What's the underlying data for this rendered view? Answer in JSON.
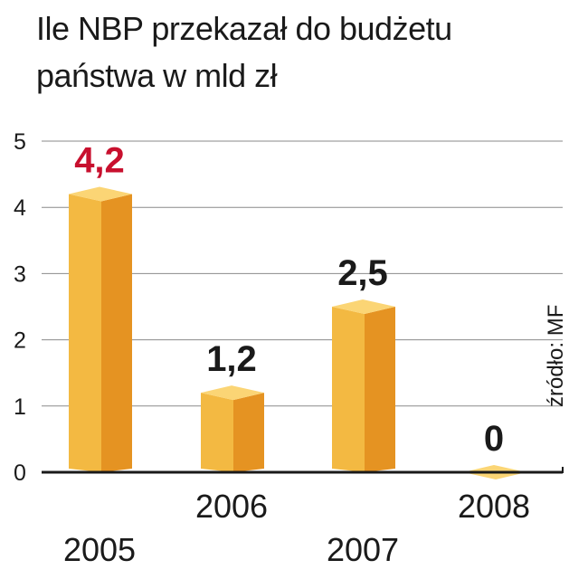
{
  "chart_data": {
    "type": "bar",
    "title": "Ile NBP przekazał do budżetu państwa w mld zł",
    "categories": [
      "2005",
      "2006",
      "2007",
      "2008"
    ],
    "values": [
      4.2,
      1.2,
      2.5,
      0
    ],
    "value_labels": [
      "4,2",
      "1,2",
      "2,5",
      "0"
    ],
    "highlight_index": 0,
    "ylim": [
      0,
      5
    ],
    "yticks": [
      0,
      1,
      2,
      3,
      4,
      5
    ],
    "grid": true,
    "source": "źródło: MF",
    "colors": {
      "bar_front": "#f3b942",
      "bar_side": "#e59322",
      "bar_top": "#fbd575",
      "highlight_value": "#c8102e",
      "value": "#1a1a1a",
      "grid": "#8a8a8a",
      "axis": "#1a1a1a"
    }
  }
}
